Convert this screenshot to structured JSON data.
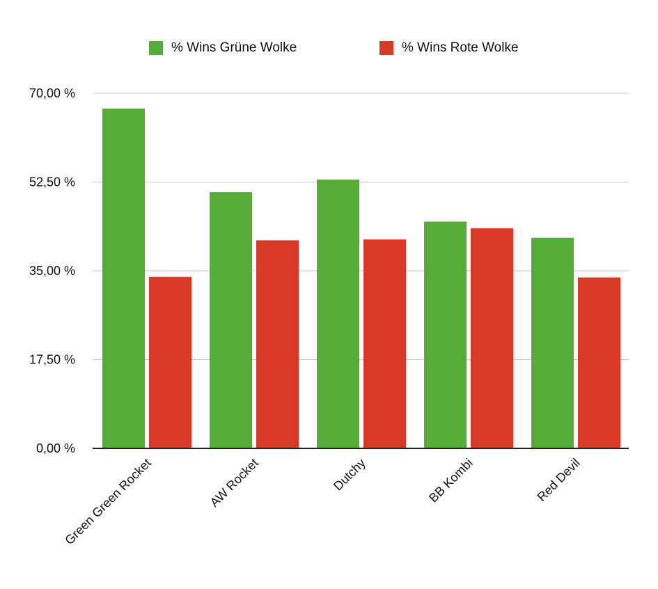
{
  "chart_data": {
    "type": "bar",
    "categories": [
      "Green Green Rocket",
      "AW Rocket",
      "Dutchy",
      "BB Kombi",
      "Red Devil"
    ],
    "series": [
      {
        "name": "% Wins Grüne Wolke",
        "color": "#55ad37",
        "values": [
          67,
          50.5,
          53,
          44.7,
          41.5
        ]
      },
      {
        "name": "% Wins Rote Wolke",
        "color": "#d93a27",
        "values": [
          33.8,
          41,
          41.2,
          43.4,
          33.7
        ]
      }
    ],
    "yticks": [
      "0,00 %",
      "17,50 %",
      "35,00 %",
      "52,50 %",
      "70,00 %"
    ],
    "ylim": [
      0,
      70
    ],
    "grid": true,
    "legend": "top"
  }
}
